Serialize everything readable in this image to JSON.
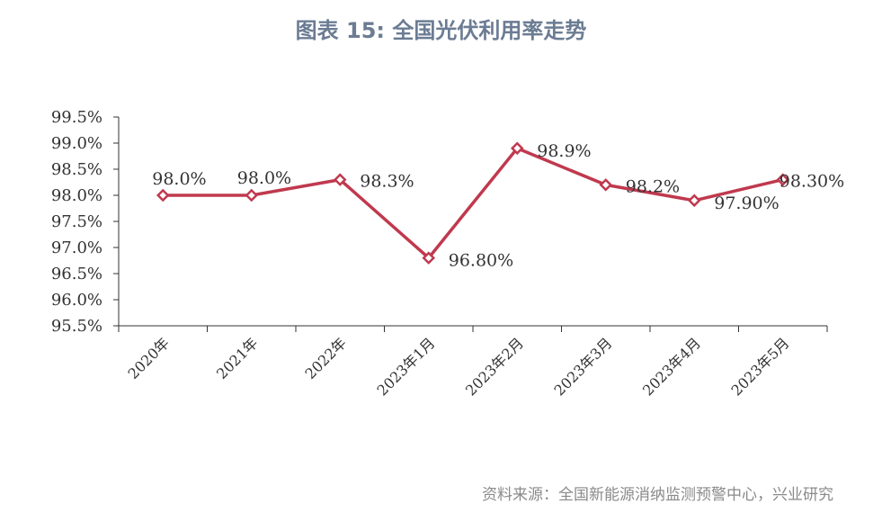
{
  "header": {
    "title": "图表 15: 全国光伏利用率走势"
  },
  "footer": {
    "source": "资料来源：全国新能源消纳监测预警中心，兴业研究"
  },
  "colors": {
    "line": "#c0394e",
    "marker_fill": "#ffffff",
    "axis": "#333333",
    "title": "#6b7c93"
  },
  "chart_data": {
    "type": "line",
    "title": "图表 15: 全国光伏利用率走势",
    "xlabel": "",
    "ylabel": "",
    "categories": [
      "2020年",
      "2021年",
      "2022年",
      "2023年1月",
      "2023年2月",
      "2023年3月",
      "2023年4月",
      "2023年5月"
    ],
    "series": [
      {
        "values": [
          98.0,
          98.0,
          98.3,
          96.8,
          98.9,
          98.2,
          97.9,
          98.3
        ]
      }
    ],
    "data_labels": [
      "98.0%",
      "98.0%",
      "98.3%",
      "96.80%",
      "98.9%",
      "98.2%",
      "97.90%",
      "98.30%"
    ],
    "ylim": [
      95.5,
      99.5
    ],
    "yticks": [
      95.5,
      96.0,
      96.5,
      97.0,
      97.5,
      98.0,
      98.5,
      99.0,
      99.5
    ],
    "ytick_labels": [
      "95.5%",
      "96.0%",
      "96.5%",
      "97.0%",
      "97.5%",
      "98.0%",
      "98.5%",
      "99.0%",
      "99.5%"
    ],
    "grid": false,
    "legend": "none"
  }
}
